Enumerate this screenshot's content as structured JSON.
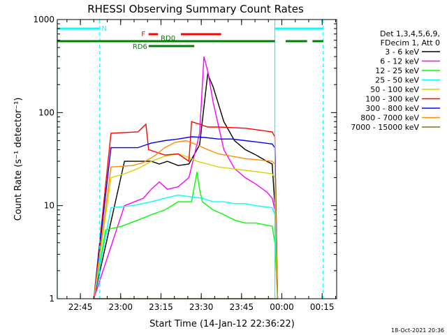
{
  "chart_data": {
    "type": "line",
    "title": "RHESSI Observing Summary Count Rates",
    "xlabel": "Start Time (14-Jan-12 22:36:22)",
    "ylabel": "Count Rate (s⁻¹ detector⁻¹)",
    "yscale": "log",
    "ylim": [
      1,
      1000
    ],
    "y_ticks": [
      {
        "value": 1,
        "label": "1"
      },
      {
        "value": 10,
        "label": "10"
      },
      {
        "value": 100,
        "label": "100"
      },
      {
        "value": 1000,
        "label": "1000"
      }
    ],
    "xlim_minutes": [
      0,
      104
    ],
    "x_ticks": [
      {
        "minute": 8.6,
        "label": "22:45"
      },
      {
        "minute": 23.6,
        "label": "23:00"
      },
      {
        "minute": 38.6,
        "label": "23:15"
      },
      {
        "minute": 53.6,
        "label": "23:30"
      },
      {
        "minute": 68.6,
        "label": "23:45"
      },
      {
        "minute": 83.6,
        "label": "00:00"
      },
      {
        "minute": 98.6,
        "label": "00:15"
      }
    ],
    "legend_header": [
      "Det 1,3,4,5,6,9,",
      "FDecim 1, Att 0"
    ],
    "series": [
      {
        "name": "3 - 6 keV",
        "color": "#000000",
        "x": [
          13.6,
          25,
          35,
          38,
          41,
          45,
          49,
          53,
          56,
          58,
          62,
          66,
          70,
          74,
          78,
          80,
          81,
          82
        ],
        "y": [
          0,
          30,
          30,
          28,
          30,
          27,
          28,
          45,
          260,
          190,
          80,
          50,
          40,
          35,
          30,
          28,
          10,
          0
        ]
      },
      {
        "name": "6 - 12 keV",
        "color": "#ff00ff",
        "x": [
          13.6,
          25,
          32,
          35,
          38,
          41,
          45,
          49,
          53,
          54.6,
          56,
          58,
          62,
          66,
          70,
          74,
          78,
          80,
          81,
          82
        ],
        "y": [
          0,
          10,
          12,
          15,
          18,
          15,
          16,
          20,
          60,
          400,
          280,
          130,
          40,
          25,
          20,
          17,
          14,
          12,
          9,
          0
        ]
      },
      {
        "name": "12 - 25 keV",
        "color": "#00ff00",
        "x": [
          13.6,
          18,
          24,
          30,
          35,
          40,
          45,
          50,
          52,
          53,
          54,
          58,
          62,
          66,
          70,
          74,
          80,
          81,
          82
        ],
        "y": [
          0,
          5.5,
          6,
          7,
          8,
          9,
          11,
          11,
          23,
          15,
          11,
          9,
          8,
          7,
          6.5,
          6.5,
          6,
          4,
          0
        ]
      },
      {
        "name": "25 - 50 keV",
        "color": "#00ffff",
        "x": [
          13.6,
          20,
          28,
          35,
          40,
          45,
          49,
          54,
          58,
          62,
          66,
          70,
          74,
          80,
          81,
          82
        ],
        "y": [
          0,
          9.5,
          10,
          11,
          12,
          13,
          12.5,
          12,
          11,
          11,
          10.5,
          10.5,
          10,
          9.5,
          8,
          0
        ]
      },
      {
        "name": "50 - 100 keV",
        "color": "#d4d400",
        "x": [
          13.6,
          20,
          25,
          30,
          35,
          40,
          45,
          49,
          52,
          56,
          60,
          65,
          70,
          75,
          80,
          81,
          82
        ],
        "y": [
          0,
          20,
          22,
          25,
          30,
          34,
          36,
          33,
          30,
          28,
          26,
          25,
          24,
          23,
          22,
          20,
          0
        ]
      },
      {
        "name": "100 - 300 keV",
        "color": "#ff0000",
        "x": [
          13.6,
          20,
          30,
          33,
          34,
          40,
          45,
          49,
          50,
          53,
          56,
          60,
          70,
          75,
          80,
          81,
          82
        ],
        "y": [
          0,
          60,
          62,
          75,
          40,
          35,
          36,
          30,
          80,
          75,
          70,
          70,
          68,
          65,
          62,
          55,
          0
        ]
      },
      {
        "name": "300 - 800 keV",
        "color": "#0000ff",
        "x": [
          13.6,
          20,
          30,
          33,
          35,
          40,
          45,
          50,
          55,
          60,
          65,
          70,
          75,
          80,
          81,
          82
        ],
        "y": [
          0,
          42,
          42,
          45,
          47,
          50,
          52,
          55,
          54,
          52,
          52,
          50,
          48,
          46,
          42,
          0
        ]
      },
      {
        "name": "800 - 7000 keV",
        "color": "#ff8c00",
        "x": [
          13.6,
          20,
          28,
          32,
          36,
          40,
          44,
          48,
          52,
          56,
          60,
          65,
          70,
          75,
          80,
          81,
          82
        ],
        "y": [
          0,
          26,
          27,
          29,
          34,
          42,
          48,
          50,
          45,
          40,
          36,
          34,
          32,
          31,
          30,
          28,
          0
        ]
      },
      {
        "name": "7000 - 15000 keV",
        "color": "#8b6914",
        "x": [
          13.6,
          20,
          25,
          30,
          35,
          40,
          45,
          48,
          50,
          55,
          60,
          65,
          70,
          75,
          80,
          81,
          82
        ],
        "y": [
          0,
          1,
          1,
          1,
          1,
          1,
          1,
          1,
          1,
          1,
          1,
          1,
          1,
          1,
          1,
          1,
          0
        ]
      }
    ],
    "annotations": [
      {
        "label": "N",
        "color": "#00ffff",
        "segments": [
          [
            0,
            15.8
          ],
          [
            81,
            99
          ]
        ],
        "level": "top"
      },
      {
        "label": "F",
        "color": "#ff0000",
        "segments": [
          [
            34,
            37.5
          ],
          [
            46,
            61
          ]
        ],
        "level": "second"
      },
      {
        "label": "RD0",
        "color": "#008000",
        "segments": [
          [
            0,
            81
          ],
          [
            85,
            93
          ],
          [
            95,
            99
          ]
        ],
        "level": "third"
      },
      {
        "label": "RD6",
        "color": "#008000",
        "segments": [
          [
            34,
            51
          ]
        ],
        "level": "fourth"
      }
    ],
    "vertical_markers_minutes": [
      0,
      15.8,
      81,
      99
    ]
  },
  "footer": {
    "date_stamp": "18-Oct-2021 20:36"
  }
}
